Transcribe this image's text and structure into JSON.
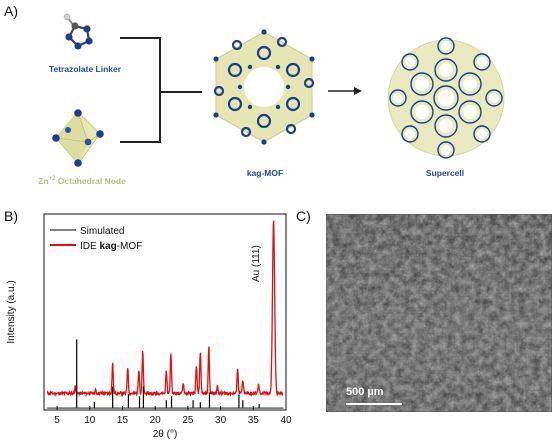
{
  "panelA": {
    "label": "A)",
    "linker_caption": "Tetrazolate Linker",
    "node_caption": "Zn+2 Octahedral Node",
    "mof_caption_bold": "kag",
    "mof_caption_rest": "-MOF",
    "supercell_caption": "Supercell",
    "colors": {
      "blue_text": "#1f4e8c",
      "node_text": "#b9bf80",
      "framework": "#e6e6b4",
      "atom": "#1d3e8a"
    }
  },
  "panelB": {
    "label": "B)"
  },
  "panelC": {
    "label": "C)",
    "scale_bar_text": "500 µm"
  },
  "chart_data": {
    "type": "line",
    "xlabel": "2θ (°)",
    "ylabel": "Intensity (a.u.)",
    "xlim": [
      3,
      40
    ],
    "xticks": [
      5,
      10,
      15,
      20,
      25,
      30,
      35,
      40
    ],
    "annotation": "Au (111)",
    "legend_position": "top-left",
    "series": [
      {
        "name": "Simulated",
        "color": "#000000",
        "peaks": [
          {
            "x": 8.0,
            "y": 0.36
          },
          {
            "x": 10.7,
            "y": 0.04
          },
          {
            "x": 13.5,
            "y": 0.12
          },
          {
            "x": 15.9,
            "y": 0.08
          },
          {
            "x": 17.6,
            "y": 0.07
          },
          {
            "x": 18.2,
            "y": 0.12
          },
          {
            "x": 21.7,
            "y": 0.05
          },
          {
            "x": 22.5,
            "y": 0.07
          },
          {
            "x": 25.8,
            "y": 0.05
          },
          {
            "x": 26.9,
            "y": 0.04
          },
          {
            "x": 28.3,
            "y": 0.09
          },
          {
            "x": 32.8,
            "y": 0.08
          },
          {
            "x": 33.4,
            "y": 0.05
          },
          {
            "x": 35.9,
            "y": 0.03
          }
        ]
      },
      {
        "name_prefix": "IDE ",
        "name_bold": "kag",
        "name_suffix": "-MOF",
        "color": "#e01010",
        "baseline": 0.085,
        "peaks": [
          {
            "x": 7.8,
            "y": 0.12
          },
          {
            "x": 10.9,
            "y": 0.1
          },
          {
            "x": 13.5,
            "y": 0.24
          },
          {
            "x": 15.8,
            "y": 0.22
          },
          {
            "x": 17.5,
            "y": 0.21
          },
          {
            "x": 18.1,
            "y": 0.3
          },
          {
            "x": 21.7,
            "y": 0.2
          },
          {
            "x": 22.4,
            "y": 0.29
          },
          {
            "x": 24.3,
            "y": 0.14
          },
          {
            "x": 26.3,
            "y": 0.23
          },
          {
            "x": 26.9,
            "y": 0.3
          },
          {
            "x": 28.2,
            "y": 0.33
          },
          {
            "x": 29.5,
            "y": 0.12
          },
          {
            "x": 32.6,
            "y": 0.21
          },
          {
            "x": 33.4,
            "y": 0.15
          },
          {
            "x": 35.8,
            "y": 0.13
          },
          {
            "x": 38.1,
            "y": 0.97
          }
        ]
      }
    ]
  }
}
